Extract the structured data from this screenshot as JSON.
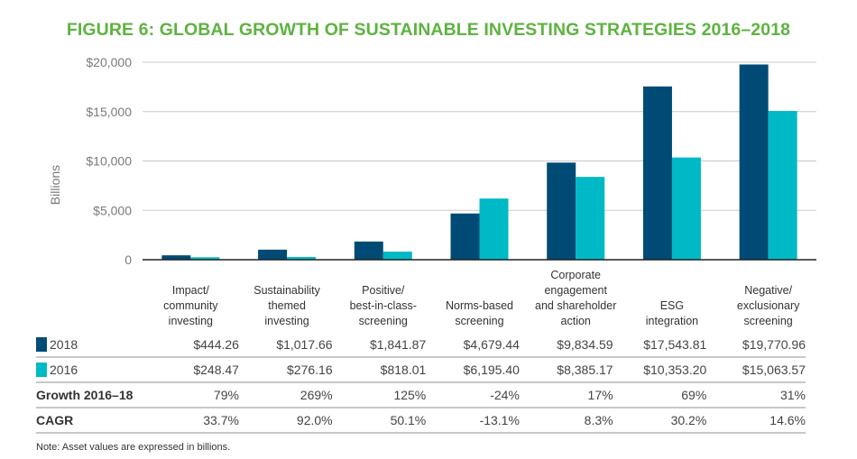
{
  "title": "FIGURE 6: GLOBAL GROWTH OF SUSTAINABLE INVESTING STRATEGIES 2016–2018",
  "note": "Note: Asset values are expressed in billions.",
  "colors": {
    "title": "#5db33f",
    "s2018": "#004b75",
    "s2016": "#00b9c6"
  },
  "chart_data": {
    "type": "bar",
    "title": "FIGURE 6: GLOBAL GROWTH OF SUSTAINABLE INVESTING STRATEGIES 2016–2018",
    "ylabel": "Billions",
    "ylim": [
      0,
      20000
    ],
    "yticks": [
      "0",
      "$5,000",
      "$10,000",
      "$15,000",
      "$20,000"
    ],
    "grid": true,
    "categories": [
      [
        "Impact/",
        "community",
        "investing"
      ],
      [
        "Sustainability",
        "themed",
        "investing"
      ],
      [
        "Positive/",
        "best-in-class-",
        "screening"
      ],
      [
        "Norms-based",
        "screening"
      ],
      [
        "Corporate",
        "engagement",
        "and shareholder",
        "action"
      ],
      [
        "ESG",
        "integration"
      ],
      [
        "Negative/",
        "exclusionary",
        "screening"
      ]
    ],
    "series": [
      {
        "name": "2018",
        "color": "#004b75",
        "values": [
          444.26,
          1017.66,
          1841.87,
          4679.44,
          9834.59,
          17543.81,
          19770.96
        ],
        "labels": [
          "$444.26",
          "$1,017.66",
          "$1,841.87",
          "$4,679.44",
          "$9,834.59",
          "$17,543.81",
          "$19,770.96"
        ]
      },
      {
        "name": "2016",
        "color": "#00b9c6",
        "values": [
          248.47,
          276.16,
          818.01,
          6195.4,
          8385.17,
          10353.2,
          15063.57
        ],
        "labels": [
          "$248.47",
          "$276.16",
          "$818.01",
          "$6,195.40",
          "$8,385.17",
          "$10,353.20",
          "$15,063.57"
        ]
      }
    ],
    "table_rows": [
      {
        "label": "Growth 2016–18",
        "values": [
          "79%",
          "269%",
          "125%",
          "-24%",
          "17%",
          "69%",
          "31%"
        ]
      },
      {
        "label": "CAGR",
        "values": [
          "33.7%",
          "92.0%",
          "50.1%",
          "-13.1%",
          "8.3%",
          "30.2%",
          "14.6%"
        ]
      }
    ]
  }
}
